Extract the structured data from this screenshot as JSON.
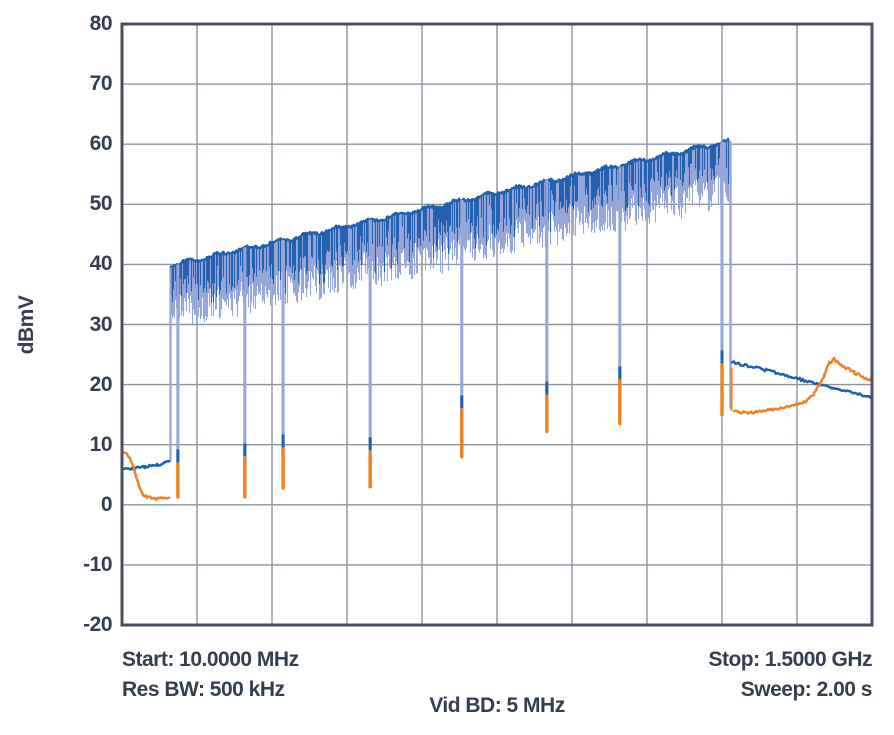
{
  "chart_data": {
    "type": "line",
    "title": "",
    "ylabel": "dBmV",
    "xlabel": "",
    "ylim": [
      -20,
      80
    ],
    "y_tick_step": 10,
    "y_ticks": [
      80,
      70,
      60,
      50,
      40,
      30,
      20,
      10,
      0,
      -10,
      -20
    ],
    "x_start_mhz": 10,
    "x_stop_mhz": 1500,
    "x_divisions": 10,
    "grid": true,
    "legend": "none",
    "annotations": {
      "start": "Start: 10.0000 MHz",
      "res_bw": "Res BW: 500 kHz",
      "vid_bd": "Vid BD: 5 MHz",
      "stop": "Stop: 1.5000 GHz",
      "sweep": "Sweep: 2.00 s"
    },
    "colors": {
      "trace_blue": "#1e5fae",
      "trace_blue_light": "#96a6d8",
      "trace_orange": "#ef8122",
      "grid": "#8d94a0",
      "frame": "#474f63",
      "text": "#333e4f",
      "background": "#ffffff"
    },
    "series": [
      {
        "name": "blue-trace",
        "color_key": "trace_blue",
        "pre_comb_points_mhz_db": [
          [
            10,
            5.9
          ],
          [
            30,
            6.1
          ],
          [
            55,
            6.3
          ],
          [
            80,
            6.6
          ],
          [
            95,
            7.0
          ],
          [
            104,
            7.3
          ]
        ],
        "post_comb_points_mhz_db": [
          [
            1222,
            23.7
          ],
          [
            1290,
            22.4
          ],
          [
            1350,
            21.0
          ],
          [
            1390,
            20.2
          ],
          [
            1420,
            19.5
          ],
          [
            1460,
            18.6
          ],
          [
            1500,
            17.9
          ]
        ]
      },
      {
        "name": "orange-trace",
        "color_key": "trace_orange",
        "pre_comb_points_mhz_db": [
          [
            10,
            8.7
          ],
          [
            20,
            8.4
          ],
          [
            26,
            7.8
          ],
          [
            32,
            6.3
          ],
          [
            38,
            4.6
          ],
          [
            45,
            2.8
          ],
          [
            52,
            1.7
          ],
          [
            60,
            1.2
          ],
          [
            75,
            1.0
          ],
          [
            90,
            1.0
          ],
          [
            104,
            1.0
          ]
        ],
        "post_comb_points_mhz_db": [
          [
            1226,
            15.6
          ],
          [
            1260,
            15.3
          ],
          [
            1300,
            15.9
          ],
          [
            1340,
            16.4
          ],
          [
            1365,
            17.0
          ],
          [
            1385,
            18.5
          ],
          [
            1405,
            21.5
          ],
          [
            1415,
            23.6
          ],
          [
            1425,
            24.2
          ],
          [
            1445,
            23.0
          ],
          [
            1465,
            22.0
          ],
          [
            1482,
            21.2
          ],
          [
            1500,
            20.6
          ]
        ]
      }
    ],
    "comb": {
      "description": "dense channel comb, tilted envelope, deep notches with orange trace visible at notch bottoms",
      "start_mhz": 105,
      "stop_mhz": 1215,
      "top_start_db": 39.8,
      "top_stop_db": 60.5,
      "ripple_min_db": 5,
      "ripple_max_db": 11,
      "deep_notches": [
        {
          "mhz": 121,
          "blue_bottom_db": 7.0,
          "orange_bottom_db": 1.3
        },
        {
          "mhz": 254,
          "blue_bottom_db": 8.0,
          "orange_bottom_db": 1.3
        },
        {
          "mhz": 330,
          "blue_bottom_db": 9.5,
          "orange_bottom_db": 2.8
        },
        {
          "mhz": 503,
          "blue_bottom_db": 9.0,
          "orange_bottom_db": 3.0
        },
        {
          "mhz": 685,
          "blue_bottom_db": 16.0,
          "orange_bottom_db": 8.0
        },
        {
          "mhz": 854,
          "blue_bottom_db": 18.3,
          "orange_bottom_db": 12.2
        },
        {
          "mhz": 999,
          "blue_bottom_db": 20.8,
          "orange_bottom_db": 13.5
        },
        {
          "mhz": 1202,
          "blue_bottom_db": 23.5,
          "orange_bottom_db": 15.0
        }
      ],
      "pre_comb_blue_level_db": 7.2,
      "end_edge": {
        "blue_level_db": 23.7,
        "orange_level_db": 15.6
      }
    }
  }
}
